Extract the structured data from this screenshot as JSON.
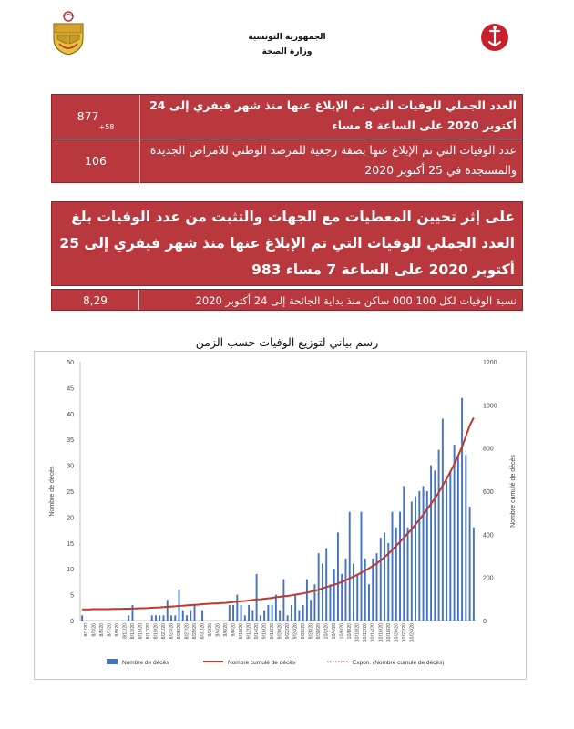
{
  "header": {
    "republic": "الجمهورية التونسية",
    "ministry": "وزارة الصحة"
  },
  "logos": {
    "left": "tunisia-coat-of-arms",
    "right": "ministry-health-emblem"
  },
  "colors": {
    "box_bg": "#b8383e",
    "bar": "#4472c4",
    "cumulative": "#c0392b",
    "expon": "#c0392b"
  },
  "table1": {
    "row1_text": "العدد الجملي للوفيات التي تم الإبلاغ عنها منذ شهر فيفري إلى 24 أكتوبر 2020 على الساعة 8 مساء",
    "row1_value": "877",
    "row1_sup": "+58",
    "row2_text": "عدد الوفيات التي تم الإبلاغ عنها بصفة رجعية للمرصد الوطني للامراض الجديدة والمستجدة في 25 أكتوبر 2020",
    "row2_value": "106"
  },
  "highlight": "على إثر تحيين المعطيات مع الجهات والتثبت من عدد الوفيات بلغ العدد الجملي للوفيات التي تم الإبلاغ عنها منذ شهر فيفري إلى 25 أكتوبر 2020 على الساعة 7 مساء 983",
  "table3": {
    "text": "نسبة الوفيات لكل 100 000 ساكن منذ بداية الجائحة إلى 24 أكتوبر 2020",
    "value": "8,29"
  },
  "chart_title": "رسم بياني لتوزيع الوفيات حسب الزمن",
  "chart_data": {
    "type": "bar",
    "ylabel": "Nombre de décès",
    "y2label": "Nombre cumulé de décès",
    "ylim": [
      0,
      50
    ],
    "y2lim": [
      0,
      1200
    ],
    "yticks": [
      0,
      5,
      10,
      15,
      20,
      25,
      30,
      35,
      40,
      45,
      50
    ],
    "y2ticks": [
      0,
      200,
      400,
      600,
      800,
      1000,
      1200
    ],
    "xtick_labels": [
      "8/1/20",
      "8/3/20",
      "8/5/20",
      "8/7/20",
      "8/9/20",
      "8/11/20",
      "8/13/20",
      "8/15/20",
      "8/17/20",
      "8/19/20",
      "8/21/20",
      "8/23/20",
      "8/25/20",
      "8/27/20",
      "8/29/20",
      "8/31/20",
      "9/2/20",
      "9/4/20",
      "9/6/20",
      "9/8/20",
      "9/10/20",
      "9/12/20",
      "9/14/20",
      "9/16/20",
      "9/18/20",
      "9/20/20",
      "9/22/20",
      "9/24/20",
      "9/26/20",
      "9/28/20",
      "9/30/20",
      "10/2/20",
      "10/4/20",
      "10/6/20",
      "10/8/20",
      "10/10/20",
      "10/12/20",
      "10/14/20",
      "10/16/20",
      "10/18/20",
      "10/20/20",
      "10/22/20",
      "10/24/20"
    ],
    "daily": [
      1,
      0,
      0,
      0,
      0,
      0,
      0,
      0,
      0,
      0,
      0,
      0,
      1,
      3,
      0,
      0,
      0,
      0,
      1,
      1,
      1,
      1,
      4,
      1,
      1,
      6,
      2,
      1,
      2,
      3,
      0,
      2,
      0,
      0,
      0,
      0,
      0,
      0,
      3,
      3,
      5,
      3,
      1,
      3,
      2,
      9,
      1,
      2,
      3,
      3,
      5,
      2,
      8,
      1,
      3,
      5,
      2,
      3,
      8,
      4,
      7,
      13,
      11,
      14,
      7,
      10,
      17,
      9,
      12,
      21,
      11,
      9,
      21,
      12,
      7,
      12,
      13,
      16,
      17,
      15,
      21,
      18,
      21,
      26,
      18,
      23,
      24,
      25,
      26,
      25,
      30,
      29,
      33,
      39,
      27,
      29,
      34,
      32,
      43,
      32,
      22,
      18
    ],
    "cumulative": [
      52,
      52,
      52,
      53,
      53,
      53,
      53,
      53,
      54,
      54,
      54,
      55,
      55,
      56,
      56,
      57,
      57,
      58,
      59,
      60,
      61,
      62,
      64,
      65,
      66,
      68,
      69,
      70,
      72,
      73,
      74,
      76,
      77,
      78,
      79,
      80,
      81,
      82,
      84,
      86,
      88,
      90,
      91,
      93,
      95,
      98,
      99,
      101,
      103,
      105,
      108,
      110,
      113,
      114,
      117,
      120,
      123,
      126,
      130,
      134,
      138,
      143,
      149,
      155,
      160,
      166,
      172,
      179,
      187,
      196,
      204,
      212,
      222,
      232,
      242,
      253,
      265,
      279,
      294,
      310,
      328,
      346,
      365,
      384,
      403,
      424,
      446,
      468,
      492,
      516,
      541,
      566,
      594,
      626,
      656,
      690,
      725,
      765,
      806,
      855,
      905,
      940
    ],
    "legend": [
      "Nombre de décès",
      "Nombre cumulé de décès",
      "Expon. (Nombre cumulé de décès)"
    ],
    "legend_position": "bottom"
  }
}
